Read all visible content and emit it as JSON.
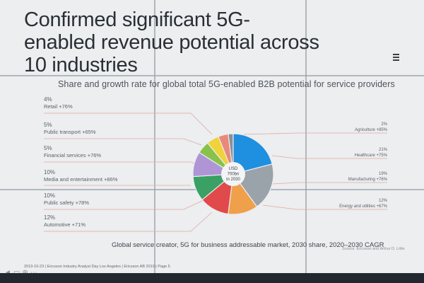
{
  "slide": {
    "title": "Confirmed significant 5G-enabled revenue potential across 10 industries",
    "footer_caption": "Global service creator, 5G for business addressable market, 2030 share, 2020–2030 CAGR",
    "source": "Source: Ericsson and Arthur D. Little",
    "event_line": "2019-10-23 | Ericsson Industry Analyst Day Los Angeles | Ericsson AB 2019 | Page 5"
  },
  "chart_data": {
    "type": "pie",
    "title": "Share and growth rate for global total 5G-enabled B2B potential for service providers",
    "center_label": [
      "USD",
      "700bn",
      "in 2030"
    ],
    "categories": [
      "Agriculture",
      "Healthcare",
      "Manufacturing",
      "Energy and utilities",
      "Automotive",
      "Public safety",
      "Media and entertainment",
      "Financial services",
      "Public transport",
      "Retail"
    ],
    "values": [
      2,
      21,
      19,
      12,
      12,
      10,
      10,
      5,
      5,
      4
    ],
    "labels": [
      {
        "share": "2%",
        "name": "Agriculture +85%",
        "side": "right"
      },
      {
        "share": "21%",
        "name": "Healthcare +75%",
        "side": "right"
      },
      {
        "share": "19%",
        "name": "Manufacturing +76%",
        "side": "right"
      },
      {
        "share": "12%",
        "name": "Energy and utilities +67%",
        "side": "right"
      },
      {
        "share": "12%",
        "name": "Automotive +71%",
        "side": "left"
      },
      {
        "share": "10%",
        "name": "Public safety +78%",
        "side": "left"
      },
      {
        "share": "10%",
        "name": "Media and entertainment +86%",
        "side": "left"
      },
      {
        "share": "5%",
        "name": "Financial services +76%",
        "side": "left"
      },
      {
        "share": "5%",
        "name": "Public transport +65%",
        "side": "left"
      },
      {
        "share": "4%",
        "name": "Retail +76%",
        "side": "left"
      }
    ],
    "colors": [
      "#8a8f96",
      "#1f8fe0",
      "#9aa3aa",
      "#f0a04a",
      "#e04a4a",
      "#3aa064",
      "#b095d6",
      "#88c24a",
      "#f0d23a",
      "#e88a7a"
    ]
  }
}
